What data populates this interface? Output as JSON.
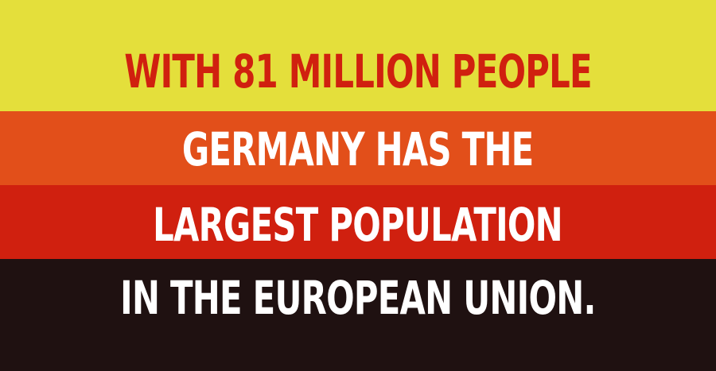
{
  "colors": {
    "band_yellow": "#e4df3b",
    "band_orange": "#e24f1a",
    "band_red": "#d0200f",
    "band_dark": "#1f1111",
    "text_red": "#d0200f",
    "text_white": "#ffffff"
  },
  "lines": [
    "WITH 81 MILLION PEOPLE",
    "GERMANY HAS THE",
    "LARGEST POPULATION",
    "IN THE EUROPEAN UNION."
  ]
}
